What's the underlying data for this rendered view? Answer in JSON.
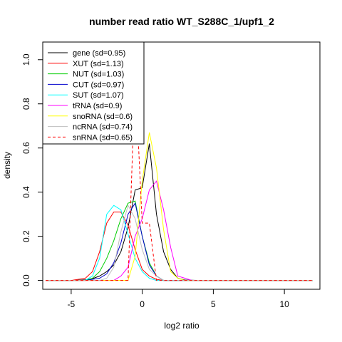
{
  "chart_data": {
    "type": "line",
    "title": "number read ratio WT_S288C_1/upf1_2",
    "xlabel": "log2 ratio",
    "ylabel": "density",
    "xlim": [
      -7,
      12.5
    ],
    "ylim": [
      -0.04,
      1.08
    ],
    "x_ticks": [
      -5,
      0,
      5,
      10
    ],
    "y_ticks": [
      0.0,
      0.2,
      0.4,
      0.6,
      0.8,
      1.0
    ],
    "x_tick_labels": [
      "-5",
      "0",
      "5",
      "10"
    ],
    "y_tick_labels": [
      "0.0",
      "0.2",
      "0.4",
      "0.6",
      "0.8",
      "1.0"
    ],
    "legend_position": "top-left",
    "series": [
      {
        "name": "gene (sd=0.95)",
        "color": "#000000",
        "dashed": false,
        "points": [
          [
            -6.8,
            0
          ],
          [
            -5,
            0
          ],
          [
            -4,
            0.003
          ],
          [
            -3.5,
            0.008
          ],
          [
            -3,
            0.02
          ],
          [
            -2.5,
            0.04
          ],
          [
            -2,
            0.07
          ],
          [
            -1.5,
            0.13
          ],
          [
            -1,
            0.24
          ],
          [
            -0.5,
            0.41
          ],
          [
            0,
            0.42
          ],
          [
            0.5,
            0.62
          ],
          [
            1,
            0.3
          ],
          [
            1.5,
            0.13
          ],
          [
            2,
            0.05
          ],
          [
            2.5,
            0.01
          ],
          [
            3,
            0.002
          ],
          [
            4,
            0
          ],
          [
            12,
            0
          ]
        ]
      },
      {
        "name": "XUT (sd=1.13)",
        "color": "#ff0000",
        "dashed": false,
        "points": [
          [
            -6.8,
            0
          ],
          [
            -5,
            0
          ],
          [
            -4,
            0.01
          ],
          [
            -3.5,
            0.04
          ],
          [
            -3,
            0.13
          ],
          [
            -2.5,
            0.26
          ],
          [
            -2,
            0.31
          ],
          [
            -1.5,
            0.31
          ],
          [
            -1,
            0.25
          ],
          [
            -0.5,
            0.14
          ],
          [
            0,
            0.05
          ],
          [
            0.5,
            0.02
          ],
          [
            1,
            0.005
          ],
          [
            1.5,
            0
          ],
          [
            12,
            0
          ]
        ]
      },
      {
        "name": "NUT (sd=1.03)",
        "color": "#00cd00",
        "dashed": false,
        "points": [
          [
            -6.8,
            0
          ],
          [
            -4,
            0
          ],
          [
            -3.5,
            0.01
          ],
          [
            -3,
            0.04
          ],
          [
            -2.5,
            0.1
          ],
          [
            -2,
            0.18
          ],
          [
            -1.5,
            0.28
          ],
          [
            -1,
            0.35
          ],
          [
            -0.5,
            0.36
          ],
          [
            0,
            0.2
          ],
          [
            0.5,
            0.08
          ],
          [
            1,
            0.02
          ],
          [
            1.5,
            0
          ],
          [
            12,
            0
          ]
        ]
      },
      {
        "name": "CUT (sd=0.97)",
        "color": "#0000cd",
        "dashed": false,
        "points": [
          [
            -6.8,
            0
          ],
          [
            -4,
            0
          ],
          [
            -3,
            0.01
          ],
          [
            -2.5,
            0.03
          ],
          [
            -2,
            0.08
          ],
          [
            -1.5,
            0.17
          ],
          [
            -1,
            0.3
          ],
          [
            -0.5,
            0.35
          ],
          [
            0,
            0.2
          ],
          [
            0.5,
            0.07
          ],
          [
            1,
            0.02
          ],
          [
            1.5,
            0
          ],
          [
            12,
            0
          ]
        ]
      },
      {
        "name": "SUT (sd=1.07)",
        "color": "#00ffff",
        "dashed": false,
        "points": [
          [
            -6.8,
            0
          ],
          [
            -4,
            0
          ],
          [
            -3.5,
            0.02
          ],
          [
            -3,
            0.1
          ],
          [
            -2.5,
            0.3
          ],
          [
            -2,
            0.34
          ],
          [
            -1.5,
            0.32
          ],
          [
            -1,
            0.21
          ],
          [
            -0.5,
            0.1
          ],
          [
            0,
            0.04
          ],
          [
            0.5,
            0.01
          ],
          [
            1,
            0
          ],
          [
            12,
            0
          ]
        ]
      },
      {
        "name": "tRNA (sd=0.9)",
        "color": "#ff00ff",
        "dashed": false,
        "points": [
          [
            -6.8,
            0
          ],
          [
            -2,
            0
          ],
          [
            -1.5,
            0.02
          ],
          [
            -1,
            0.06
          ],
          [
            -0.5,
            0.2
          ],
          [
            0,
            0.28
          ],
          [
            0.5,
            0.41
          ],
          [
            1,
            0.45
          ],
          [
            1.5,
            0.32
          ],
          [
            2,
            0.15
          ],
          [
            2.5,
            0.02
          ],
          [
            3,
            0.01
          ],
          [
            3.5,
            0
          ],
          [
            12,
            0
          ]
        ]
      },
      {
        "name": "snoRNA (sd=0.6)",
        "color": "#ffff00",
        "dashed": false,
        "points": [
          [
            -6.8,
            0
          ],
          [
            -1,
            0
          ],
          [
            -0.5,
            0.11
          ],
          [
            0,
            0.45
          ],
          [
            0.5,
            0.67
          ],
          [
            1,
            0.51
          ],
          [
            1.5,
            0.23
          ],
          [
            2,
            0.04
          ],
          [
            2.5,
            0.01
          ],
          [
            3,
            0
          ],
          [
            12,
            0
          ]
        ]
      },
      {
        "name": "ncRNA (sd=0.74)",
        "color": "#bebebe",
        "dashed": false,
        "points": [
          [
            -6.8,
            0
          ],
          [
            -3,
            0
          ],
          [
            -2.5,
            0.01
          ],
          [
            -2,
            0.06
          ],
          [
            -1.5,
            0.22
          ],
          [
            -1,
            0.34
          ],
          [
            -0.5,
            0.28
          ],
          [
            0,
            0.14
          ],
          [
            0.5,
            0.05
          ],
          [
            1,
            0.02
          ],
          [
            1.5,
            0
          ],
          [
            12,
            0
          ]
        ]
      },
      {
        "name": "snRNA (sd=0.65)",
        "color": "#ff0000",
        "dashed": true,
        "points": [
          [
            -6.8,
            0
          ],
          [
            -1,
            0
          ],
          [
            -0.5,
            0.93
          ],
          [
            0,
            0.26
          ],
          [
            0.5,
            0.26
          ],
          [
            1,
            0
          ],
          [
            12,
            0
          ]
        ]
      }
    ]
  }
}
